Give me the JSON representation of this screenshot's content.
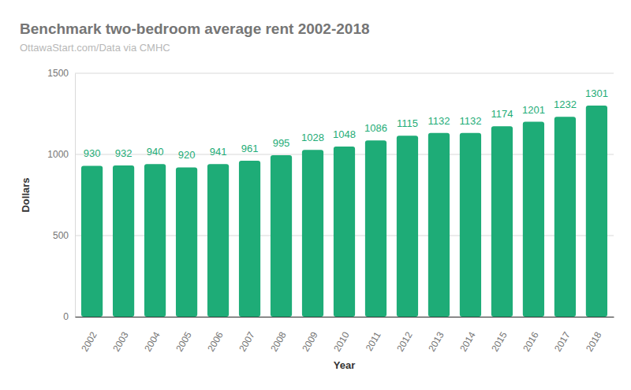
{
  "chart_data": {
    "type": "bar",
    "title": "Benchmark two-bedroom average rent 2002-2018",
    "subtitle": "OttawaStart.com/Data via CMHC",
    "x_label": "Year",
    "y_label": "Dollars",
    "categories": [
      "2002",
      "2003",
      "2004",
      "2005",
      "2006",
      "2007",
      "2008",
      "2009",
      "2010",
      "2011",
      "2012",
      "2013",
      "2014",
      "2015",
      "2016",
      "2017",
      "2018"
    ],
    "values": [
      930,
      932,
      940,
      920,
      941,
      961,
      995,
      1028,
      1048,
      1086,
      1115,
      1132,
      1132,
      1174,
      1201,
      1232,
      1301
    ],
    "color": "#1eac77",
    "ylim": [
      0,
      1500
    ],
    "yticks": [
      0,
      500,
      1000,
      1500
    ],
    "grid": true,
    "data_labels": true
  }
}
